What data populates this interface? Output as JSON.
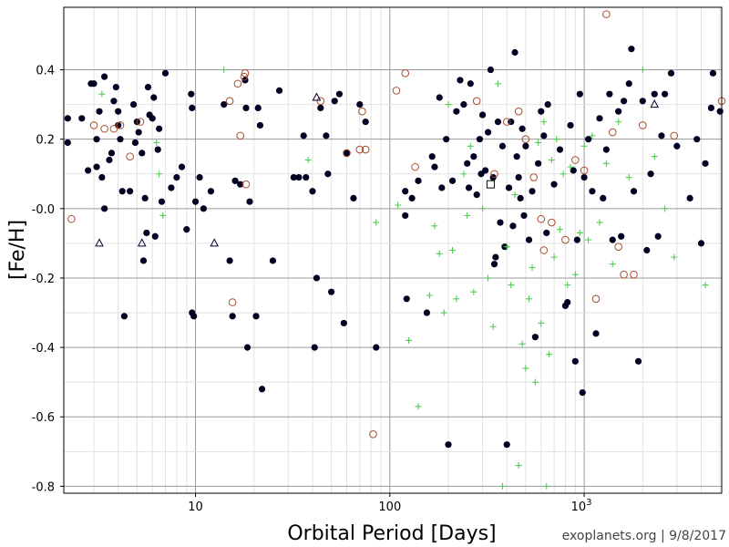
{
  "chart_data": {
    "type": "scatter",
    "xlabel": "Orbital Period [Days]",
    "ylabel": "[Fe/H]",
    "xscale": "log",
    "xlim": [
      2.1,
      5100
    ],
    "ylim": [
      -0.82,
      0.58
    ],
    "grid": true,
    "credit": "exoplanets.org | 9/8/2017",
    "x_tick_labels": [
      {
        "value": 10,
        "label": "10"
      },
      {
        "value": 100,
        "label": "100"
      },
      {
        "value": 1000,
        "label": "10",
        "sup": "3"
      }
    ],
    "y_tick_labels": [
      {
        "value": 0.4,
        "label": "0.4"
      },
      {
        "value": 0.2,
        "label": "0.2"
      },
      {
        "value": 0.0,
        "label": "-0.0"
      },
      {
        "value": -0.2,
        "label": "-0.2"
      },
      {
        "value": -0.4,
        "label": "-0.4"
      },
      {
        "value": -0.6,
        "label": "-0.6"
      },
      {
        "value": -0.8,
        "label": "-0.8"
      }
    ],
    "series": [
      {
        "marker": "filled-circle",
        "color": "#000022",
        "points": [
          [
            2.2,
            0.26
          ],
          [
            2.2,
            0.19
          ],
          [
            2.6,
            0.26
          ],
          [
            2.8,
            0.11
          ],
          [
            2.9,
            0.36
          ],
          [
            3.0,
            0.36
          ],
          [
            3.1,
            0.12
          ],
          [
            3.1,
            0.2
          ],
          [
            3.2,
            0.28
          ],
          [
            3.3,
            0.09
          ],
          [
            3.4,
            0.38
          ],
          [
            3.4,
            0.0
          ],
          [
            3.6,
            0.14
          ],
          [
            3.7,
            0.16
          ],
          [
            3.8,
            0.31
          ],
          [
            3.9,
            0.35
          ],
          [
            4.0,
            0.28
          ],
          [
            4.0,
            0.24
          ],
          [
            4.1,
            0.2
          ],
          [
            4.2,
            0.05
          ],
          [
            4.3,
            -0.31
          ],
          [
            4.6,
            0.05
          ],
          [
            4.8,
            0.3
          ],
          [
            4.9,
            0.19
          ],
          [
            5.0,
            0.25
          ],
          [
            5.1,
            0.22
          ],
          [
            5.3,
            0.16
          ],
          [
            5.4,
            -0.15
          ],
          [
            5.5,
            0.03
          ],
          [
            5.6,
            -0.07
          ],
          [
            5.7,
            0.35
          ],
          [
            5.8,
            0.27
          ],
          [
            6.0,
            0.26
          ],
          [
            6.1,
            0.32
          ],
          [
            6.2,
            -0.08
          ],
          [
            6.4,
            0.17
          ],
          [
            6.5,
            0.23
          ],
          [
            6.7,
            0.02
          ],
          [
            7.0,
            0.39
          ],
          [
            7.5,
            0.06
          ],
          [
            8.0,
            0.09
          ],
          [
            8.5,
            0.12
          ],
          [
            9.0,
            -0.06
          ],
          [
            9.5,
            0.33
          ],
          [
            9.6,
            0.29
          ],
          [
            9.6,
            -0.3
          ],
          [
            9.8,
            -0.31
          ],
          [
            10.0,
            0.02
          ],
          [
            10.5,
            0.09
          ],
          [
            11.0,
            0.0
          ],
          [
            12.0,
            0.05
          ],
          [
            14.0,
            0.3
          ],
          [
            15.0,
            -0.15
          ],
          [
            15.5,
            -0.31
          ],
          [
            16.0,
            0.08
          ],
          [
            17.0,
            0.07
          ],
          [
            18.0,
            0.37
          ],
          [
            18.2,
            0.29
          ],
          [
            18.5,
            -0.4
          ],
          [
            19.0,
            0.02
          ],
          [
            20.5,
            -0.31
          ],
          [
            21.0,
            0.29
          ],
          [
            21.5,
            0.24
          ],
          [
            22.0,
            -0.52
          ],
          [
            25.0,
            -0.15
          ],
          [
            27.0,
            0.34
          ],
          [
            32.0,
            0.09
          ],
          [
            34.0,
            0.09
          ],
          [
            36.0,
            0.21
          ],
          [
            37.0,
            0.09
          ],
          [
            40.0,
            0.05
          ],
          [
            41.0,
            -0.4
          ],
          [
            42.0,
            -0.2
          ],
          [
            44.0,
            0.29
          ],
          [
            47.0,
            0.21
          ],
          [
            48.0,
            0.1
          ],
          [
            50.0,
            -0.24
          ],
          [
            52.0,
            0.31
          ],
          [
            55.0,
            0.33
          ],
          [
            58.0,
            -0.33
          ],
          [
            60.0,
            0.16
          ],
          [
            65.0,
            0.03
          ],
          [
            70.0,
            0.3
          ],
          [
            75.0,
            0.25
          ],
          [
            85.0,
            -0.4
          ],
          [
            120.0,
            -0.02
          ],
          [
            120.0,
            0.05
          ],
          [
            122.0,
            -0.26
          ],
          [
            130.0,
            0.03
          ],
          [
            140.0,
            0.08
          ],
          [
            155.0,
            -0.3
          ],
          [
            165.0,
            0.15
          ],
          [
            170.0,
            0.12
          ],
          [
            180.0,
            0.32
          ],
          [
            185.0,
            0.06
          ],
          [
            195.0,
            0.2
          ],
          [
            200.0,
            -0.68
          ],
          [
            210.0,
            0.08
          ],
          [
            220.0,
            0.28
          ],
          [
            230.0,
            0.37
          ],
          [
            240.0,
            0.3
          ],
          [
            250.0,
            0.13
          ],
          [
            255.0,
            0.06
          ],
          [
            260.0,
            0.36
          ],
          [
            270.0,
            0.15
          ],
          [
            280.0,
            0.04
          ],
          [
            290.0,
            0.2
          ],
          [
            295.0,
            0.1
          ],
          [
            300.0,
            0.27
          ],
          [
            310.0,
            0.11
          ],
          [
            320.0,
            0.22
          ],
          [
            330.0,
            0.4
          ],
          [
            340.0,
            0.09
          ],
          [
            345.0,
            -0.16
          ],
          [
            350.0,
            -0.14
          ],
          [
            360.0,
            0.25
          ],
          [
            370.0,
            -0.04
          ],
          [
            380.0,
            0.18
          ],
          [
            390.0,
            -0.11
          ],
          [
            400.0,
            -0.68
          ],
          [
            410.0,
            0.06
          ],
          [
            420.0,
            0.25
          ],
          [
            430.0,
            -0.05
          ],
          [
            440.0,
            0.45
          ],
          [
            450.0,
            0.15
          ],
          [
            460.0,
            0.09
          ],
          [
            470.0,
            0.03
          ],
          [
            480.0,
            0.23
          ],
          [
            490.0,
            -0.02
          ],
          [
            500.0,
            0.18
          ],
          [
            520.0,
            -0.09
          ],
          [
            540.0,
            0.05
          ],
          [
            560.0,
            -0.37
          ],
          [
            580.0,
            0.13
          ],
          [
            600.0,
            0.28
          ],
          [
            620.0,
            0.21
          ],
          [
            640.0,
            -0.07
          ],
          [
            650.0,
            0.3
          ],
          [
            700.0,
            0.07
          ],
          [
            750.0,
            0.17
          ],
          [
            800.0,
            -0.28
          ],
          [
            820.0,
            -0.27
          ],
          [
            850.0,
            0.24
          ],
          [
            880.0,
            0.11
          ],
          [
            900.0,
            -0.44
          ],
          [
            920.0,
            -0.09
          ],
          [
            950.0,
            0.33
          ],
          [
            980.0,
            -0.53
          ],
          [
            1000.0,
            0.09
          ],
          [
            1050.0,
            0.2
          ],
          [
            1100.0,
            0.05
          ],
          [
            1150.0,
            -0.36
          ],
          [
            1200.0,
            0.26
          ],
          [
            1250.0,
            0.03
          ],
          [
            1300.0,
            0.17
          ],
          [
            1350.0,
            0.33
          ],
          [
            1400.0,
            -0.09
          ],
          [
            1500.0,
            0.28
          ],
          [
            1550.0,
            -0.08
          ],
          [
            1600.0,
            0.31
          ],
          [
            1700.0,
            0.36
          ],
          [
            1750.0,
            0.46
          ],
          [
            1800.0,
            0.05
          ],
          [
            1900.0,
            -0.44
          ],
          [
            2000.0,
            0.31
          ],
          [
            2100.0,
            -0.12
          ],
          [
            2200.0,
            0.1
          ],
          [
            2300.0,
            0.33
          ],
          [
            2400.0,
            -0.08
          ],
          [
            2500.0,
            0.21
          ],
          [
            2600.0,
            0.33
          ],
          [
            2800.0,
            0.39
          ],
          [
            3000.0,
            0.18
          ],
          [
            3500.0,
            0.03
          ],
          [
            3800.0,
            0.2
          ],
          [
            4000.0,
            -0.1
          ],
          [
            4200.0,
            0.13
          ],
          [
            4500.0,
            0.29
          ],
          [
            4600.0,
            0.39
          ],
          [
            5000.0,
            0.28
          ]
        ]
      },
      {
        "marker": "open-circle",
        "color": "#a84b2c",
        "points": [
          [
            2.3,
            -0.03
          ],
          [
            3.0,
            0.24
          ],
          [
            3.4,
            0.23
          ],
          [
            3.8,
            0.23
          ],
          [
            4.1,
            0.24
          ],
          [
            4.6,
            0.15
          ],
          [
            5.2,
            0.25
          ],
          [
            15.0,
            0.31
          ],
          [
            15.5,
            -0.27
          ],
          [
            16.5,
            0.36
          ],
          [
            17.0,
            0.21
          ],
          [
            17.8,
            0.38
          ],
          [
            18.0,
            0.39
          ],
          [
            18.2,
            0.07
          ],
          [
            44.0,
            0.31
          ],
          [
            60.0,
            0.16
          ],
          [
            70.0,
            0.17
          ],
          [
            72.0,
            0.28
          ],
          [
            75.0,
            0.17
          ],
          [
            82.0,
            -0.65
          ],
          [
            108.0,
            0.34
          ],
          [
            120.0,
            0.39
          ],
          [
            135.0,
            0.12
          ],
          [
            280.0,
            0.31
          ],
          [
            345.0,
            0.1
          ],
          [
            400.0,
            0.25
          ],
          [
            460.0,
            0.28
          ],
          [
            500.0,
            0.2
          ],
          [
            550.0,
            0.09
          ],
          [
            600.0,
            -0.03
          ],
          [
            620.0,
            -0.12
          ],
          [
            680.0,
            -0.04
          ],
          [
            800.0,
            -0.09
          ],
          [
            900.0,
            0.14
          ],
          [
            1000.0,
            0.11
          ],
          [
            1150.0,
            -0.26
          ],
          [
            1300.0,
            0.56
          ],
          [
            1400.0,
            0.22
          ],
          [
            1500.0,
            -0.11
          ],
          [
            1600.0,
            -0.19
          ],
          [
            1800.0,
            -0.19
          ],
          [
            2000.0,
            0.24
          ],
          [
            2900.0,
            0.21
          ],
          [
            5100.0,
            0.31
          ]
        ]
      },
      {
        "marker": "plus",
        "color": "#55cc55",
        "points": [
          [
            3.3,
            0.33
          ],
          [
            6.3,
            0.19
          ],
          [
            6.5,
            0.1
          ],
          [
            6.8,
            -0.02
          ],
          [
            14.0,
            0.4
          ],
          [
            38.0,
            0.14
          ],
          [
            85.0,
            -0.04
          ],
          [
            110.0,
            0.01
          ],
          [
            125.0,
            -0.38
          ],
          [
            140.0,
            -0.57
          ],
          [
            160.0,
            -0.25
          ],
          [
            170.0,
            -0.05
          ],
          [
            180.0,
            -0.13
          ],
          [
            190.0,
            -0.3
          ],
          [
            200.0,
            0.3
          ],
          [
            210.0,
            -0.12
          ],
          [
            220.0,
            -0.26
          ],
          [
            240.0,
            0.1
          ],
          [
            250.0,
            -0.02
          ],
          [
            260.0,
            0.18
          ],
          [
            270.0,
            -0.24
          ],
          [
            300.0,
            0.0
          ],
          [
            320.0,
            -0.2
          ],
          [
            340.0,
            -0.34
          ],
          [
            360.0,
            0.36
          ],
          [
            380.0,
            -0.8
          ],
          [
            400.0,
            -0.11
          ],
          [
            420.0,
            -0.22
          ],
          [
            440.0,
            0.04
          ],
          [
            460.0,
            -0.74
          ],
          [
            480.0,
            -0.39
          ],
          [
            500.0,
            -0.46
          ],
          [
            520.0,
            -0.26
          ],
          [
            540.0,
            -0.17
          ],
          [
            560.0,
            -0.5
          ],
          [
            580.0,
            0.19
          ],
          [
            600.0,
            -0.33
          ],
          [
            620.0,
            0.25
          ],
          [
            640.0,
            -0.8
          ],
          [
            660.0,
            -0.42
          ],
          [
            680.0,
            0.14
          ],
          [
            700.0,
            -0.14
          ],
          [
            720.0,
            0.2
          ],
          [
            750.0,
            -0.06
          ],
          [
            780.0,
            0.1
          ],
          [
            820.0,
            -0.22
          ],
          [
            850.0,
            0.12
          ],
          [
            900.0,
            -0.19
          ],
          [
            950.0,
            -0.07
          ],
          [
            1000.0,
            0.18
          ],
          [
            1050.0,
            -0.09
          ],
          [
            1100.0,
            0.21
          ],
          [
            1200.0,
            -0.04
          ],
          [
            1300.0,
            0.13
          ],
          [
            1400.0,
            -0.16
          ],
          [
            1500.0,
            0.25
          ],
          [
            1700.0,
            0.09
          ],
          [
            2000.0,
            0.4
          ],
          [
            2300.0,
            0.15
          ],
          [
            2600.0,
            0.0
          ],
          [
            2900.0,
            -0.14
          ],
          [
            4200.0,
            -0.22
          ]
        ]
      },
      {
        "marker": "open-triangle",
        "color": "#000033",
        "points": [
          [
            3.2,
            -0.1
          ],
          [
            5.3,
            -0.1
          ],
          [
            12.5,
            -0.1
          ],
          [
            42.0,
            0.32
          ],
          [
            2300.0,
            0.3
          ]
        ]
      },
      {
        "marker": "open-square",
        "color": "#000000",
        "points": [
          [
            330.0,
            0.07
          ]
        ]
      }
    ]
  }
}
